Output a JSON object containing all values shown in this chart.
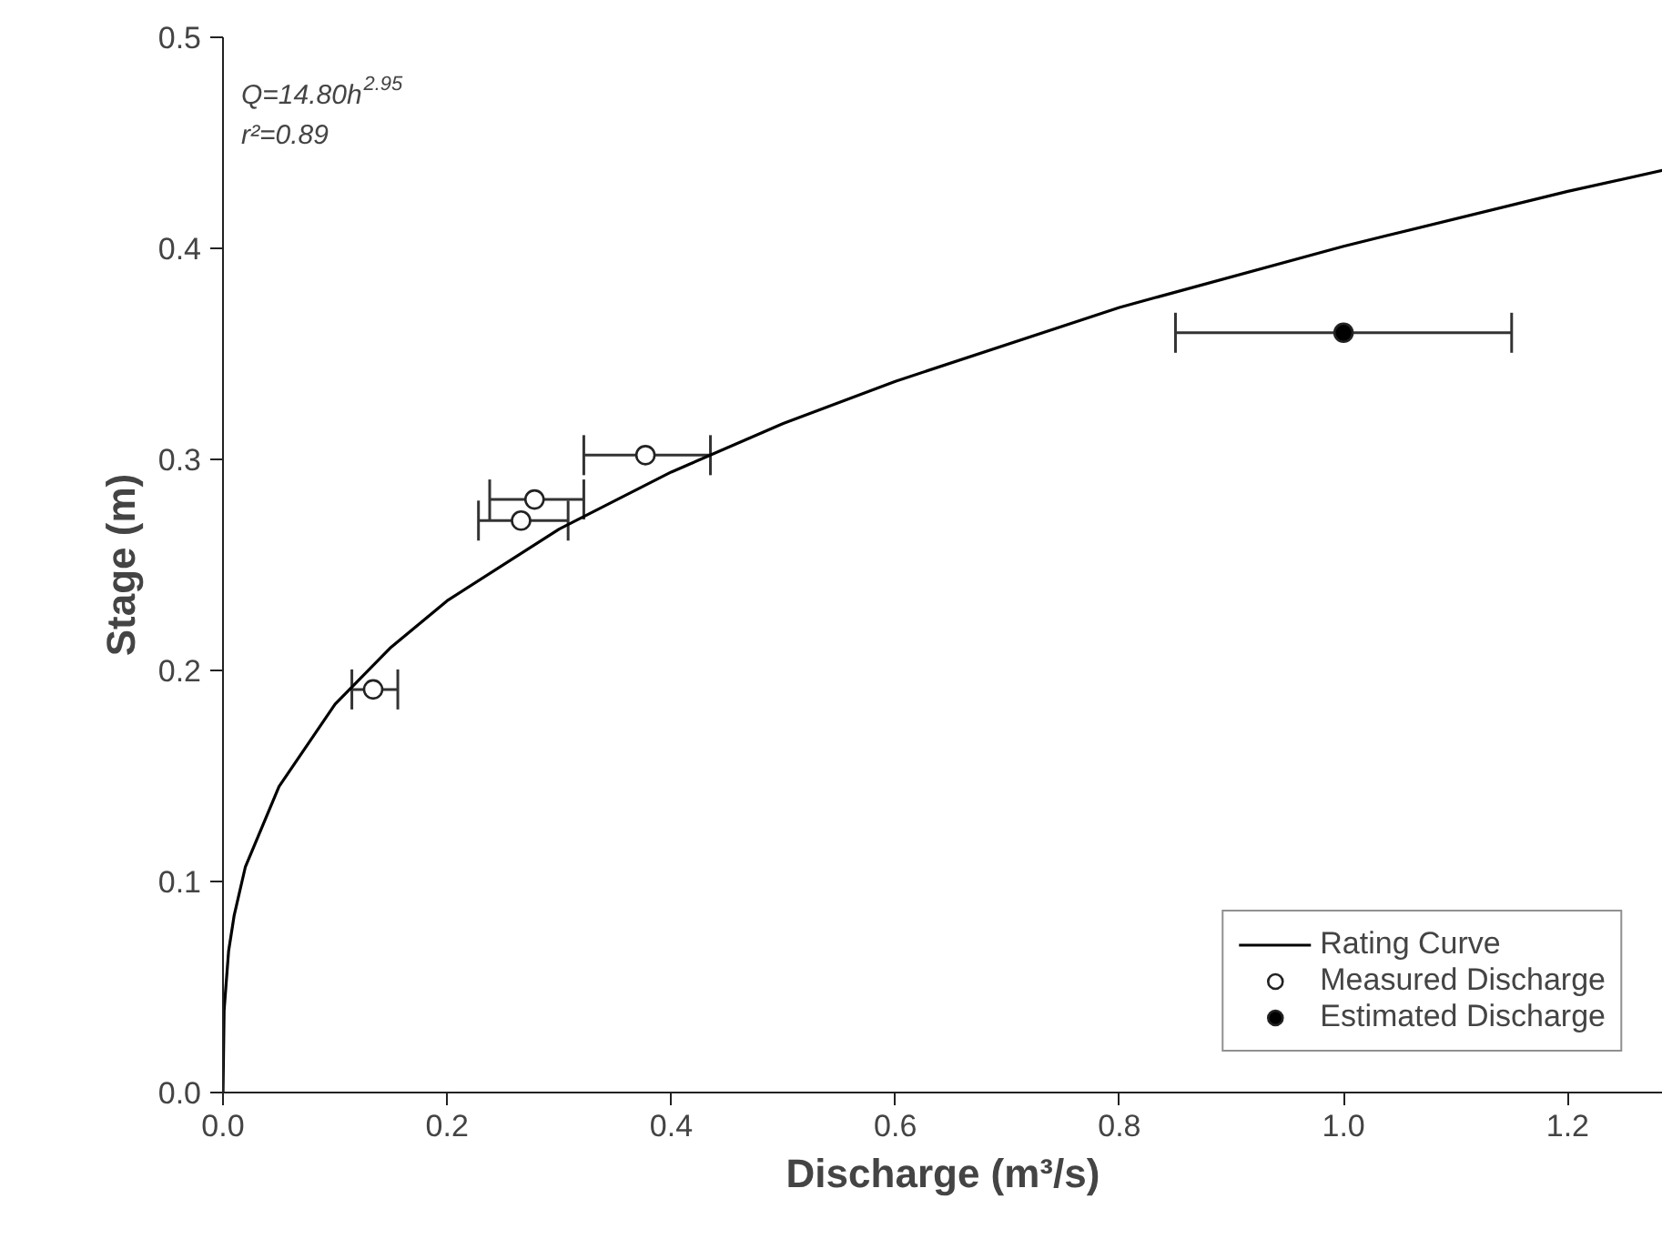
{
  "chart_data": {
    "type": "scatter",
    "xlabel": "Discharge (m³/s)",
    "ylabel": "Stage (m)",
    "annotations": [
      "Q=14.80h$^{2.95}$",
      "r²=0.89"
    ],
    "xlim": [
      0,
      1.285
    ],
    "ylim": [
      0,
      0.5
    ],
    "xticks": [
      {
        "value": 0,
        "label": "0.0"
      },
      0.2,
      0.4,
      0.6,
      0.8,
      {
        "value": 1,
        "label": "1.0"
      },
      1.2
    ],
    "yticks": [
      {
        "value": 0,
        "label": "0.0"
      },
      0.1,
      0.2,
      0.3,
      0.4,
      0.5
    ],
    "grid": false,
    "legend": "bottom right",
    "series": [
      {
        "name": "Rating Curve",
        "type": "line",
        "color": "#000000",
        "line_style": "solid",
        "x": [
          0,
          0.001,
          0.005,
          0.01,
          0.02,
          0.05,
          0.1,
          0.15,
          0.2,
          0.3,
          0.4,
          0.5,
          0.6,
          0.8,
          1.0,
          1.2,
          1.285
        ],
        "values": [
          0,
          0.039,
          0.067,
          0.084,
          0.107,
          0.145,
          0.184,
          0.211,
          0.233,
          0.267,
          0.294,
          0.317,
          0.337,
          0.372,
          0.401,
          0.427,
          0.437
        ]
      },
      {
        "name": "Measured Discharge",
        "color": "#ffffff",
        "marker": "circle",
        "x": [
          0.134,
          0.266,
          0.278,
          0.377
        ],
        "values": [
          0.191,
          0.271,
          0.281,
          0.302
        ],
        "xerrors": [
          [
            0.115,
            0.156
          ],
          [
            0.228,
            0.308
          ],
          [
            0.238,
            0.322
          ],
          [
            0.322,
            0.435
          ]
        ]
      },
      {
        "name": "Estimated Discharge",
        "color": "#000000",
        "marker": "circle",
        "x": [
          1.0
        ],
        "values": [
          0.36
        ],
        "xerrors": [
          [
            0.85,
            1.15
          ]
        ]
      }
    ]
  }
}
